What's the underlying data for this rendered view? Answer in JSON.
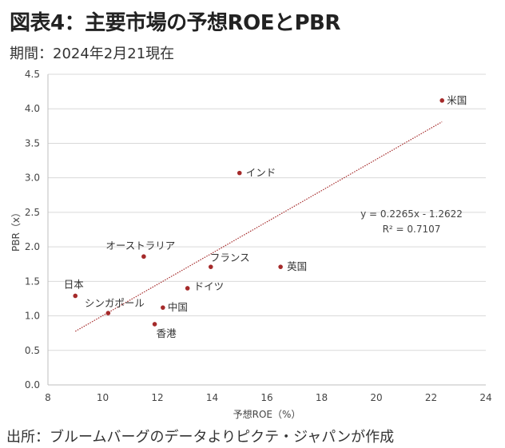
{
  "header": {
    "title": "図表4：主要市場の予想ROEとPBR",
    "subtitle": "期間：2024年2月21現在"
  },
  "footer": {
    "source": "出所：ブルームバーグのデータよりピクテ・ジャパンが作成"
  },
  "colors": {
    "point": "#a52a2a",
    "trendline": "#a52a2a",
    "grid": "#d9d9d9"
  },
  "chart_data": {
    "type": "scatter",
    "xlabel": "予想ROE（%）",
    "ylabel": "PBR（x）",
    "xlim": [
      8,
      24
    ],
    "ylim": [
      0,
      4.5
    ],
    "xticks": [
      "8",
      "10",
      "12",
      "14",
      "16",
      "18",
      "20",
      "22",
      "24"
    ],
    "yticks": [
      "0.0",
      "0.5",
      "1.0",
      "1.5",
      "2.0",
      "2.5",
      "3.0",
      "3.5",
      "4.0",
      "4.5"
    ],
    "grid": "horizontal",
    "points": [
      {
        "label": "米国",
        "x": 22.4,
        "y": 4.12
      },
      {
        "label": "インド",
        "x": 15.0,
        "y": 3.07
      },
      {
        "label": "オーストラリア",
        "x": 11.5,
        "y": 1.86
      },
      {
        "label": "フランス",
        "x": 13.95,
        "y": 1.71
      },
      {
        "label": "英国",
        "x": 16.5,
        "y": 1.71
      },
      {
        "label": "ドイツ",
        "x": 13.1,
        "y": 1.4
      },
      {
        "label": "日本",
        "x": 9.0,
        "y": 1.29
      },
      {
        "label": "シンガポール",
        "x": 10.2,
        "y": 1.04
      },
      {
        "label": "中国",
        "x": 12.2,
        "y": 1.12
      },
      {
        "label": "香港",
        "x": 11.9,
        "y": 0.88
      }
    ],
    "trendline": {
      "slope": 0.2265,
      "intercept": -1.2622,
      "x_range": [
        9.0,
        22.4
      ],
      "equation": "y = 0.2265x - 1.2622",
      "r2": "R² = 0.7107"
    }
  }
}
